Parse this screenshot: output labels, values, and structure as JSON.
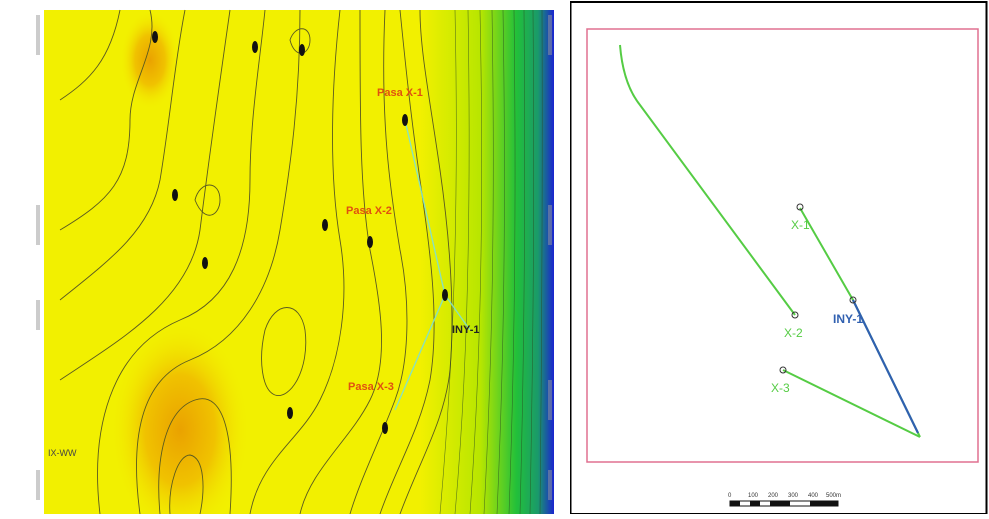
{
  "contour_map": {
    "colors": {
      "yellow": "#f2f000",
      "orange": "#f0c000",
      "green": "#1fbf30",
      "blue": "#1a2ad0",
      "contour": "#5a5a20",
      "well_label": "#e05010",
      "path": "#7fe0d0"
    },
    "well_labels": [
      {
        "id": "lbl-x1",
        "text": "Pasa X-1"
      },
      {
        "id": "lbl-x2",
        "text": "Pasa X-2"
      },
      {
        "id": "lbl-x3",
        "text": "Pasa X-3"
      },
      {
        "id": "lbl-iny",
        "text": "INY-1"
      }
    ],
    "edge_labels": [
      {
        "id": "lbl-left",
        "text": "IX-WW"
      }
    ]
  },
  "well_plan": {
    "colors": {
      "frame": "#e07090",
      "trajectory": "#55cc44",
      "injector": "#3060b0"
    },
    "wells": [
      {
        "id": "x1",
        "label": "X-1",
        "color": "#55cc44"
      },
      {
        "id": "x2",
        "label": "X-2",
        "color": "#55cc44"
      },
      {
        "id": "x3",
        "label": "X-3",
        "color": "#55cc44"
      },
      {
        "id": "iny",
        "label": "INY-1",
        "color": "#3060b0"
      }
    ],
    "scale_bar": {
      "ticks": [
        "0",
        "100",
        "200",
        "300",
        "400",
        "500m"
      ]
    }
  }
}
